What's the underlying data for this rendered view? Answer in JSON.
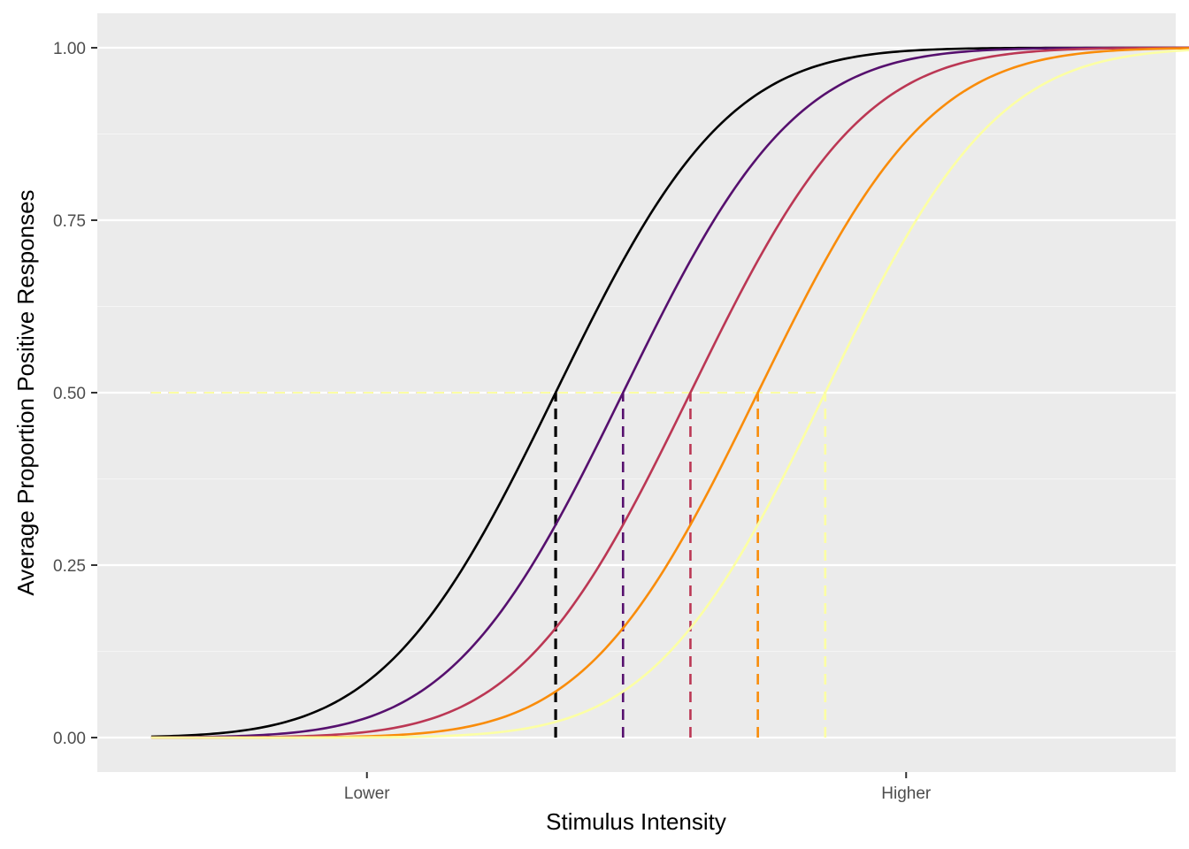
{
  "chart_data": {
    "type": "line",
    "title": "",
    "xlabel": "Stimulus Intensity",
    "ylabel": "Average Proportion Positive Responses",
    "xlim": [
      -3,
      5
    ],
    "ylim": [
      -0.05,
      1.05
    ],
    "x_ticks": [
      {
        "value": -1.0,
        "label": "Lower"
      },
      {
        "value": 3.0,
        "label": "Higher"
      }
    ],
    "y_ticks": [
      {
        "value": 0.0,
        "label": "0.00"
      },
      {
        "value": 0.25,
        "label": "0.25"
      },
      {
        "value": 0.5,
        "label": "0.50"
      },
      {
        "value": 0.75,
        "label": "0.75"
      },
      {
        "value": 1.0,
        "label": "1.00"
      }
    ],
    "grid": true,
    "legend": "none",
    "curve_x_range": [
      -2.6,
      5.4
    ],
    "series": [
      {
        "threshold": 0.4,
        "slope": 1.0,
        "color": "#000000",
        "values_at_thresholds": [
          0.5,
          0.69,
          0.84,
          0.93,
          0.98
        ]
      },
      {
        "threshold": 0.9,
        "slope": 1.0,
        "color": "#56106e",
        "values_at_thresholds": [
          0.31,
          0.5,
          0.69,
          0.84,
          0.93
        ]
      },
      {
        "threshold": 1.4,
        "slope": 1.0,
        "color": "#bb3754",
        "values_at_thresholds": [
          0.16,
          0.31,
          0.5,
          0.69,
          0.84
        ]
      },
      {
        "threshold": 1.9,
        "slope": 1.0,
        "color": "#f98c0a",
        "values_at_thresholds": [
          0.07,
          0.16,
          0.31,
          0.5,
          0.69
        ]
      },
      {
        "threshold": 2.4,
        "slope": 1.0,
        "color": "#fcffa4",
        "values_at_thresholds": [
          0.02,
          0.07,
          0.16,
          0.31,
          0.5
        ]
      }
    ],
    "threshold_level": 0.5,
    "colors": {
      "panel_background": "#ebebeb",
      "grid_major": "#ffffff",
      "grid_minor": "#f5f5f5"
    }
  }
}
